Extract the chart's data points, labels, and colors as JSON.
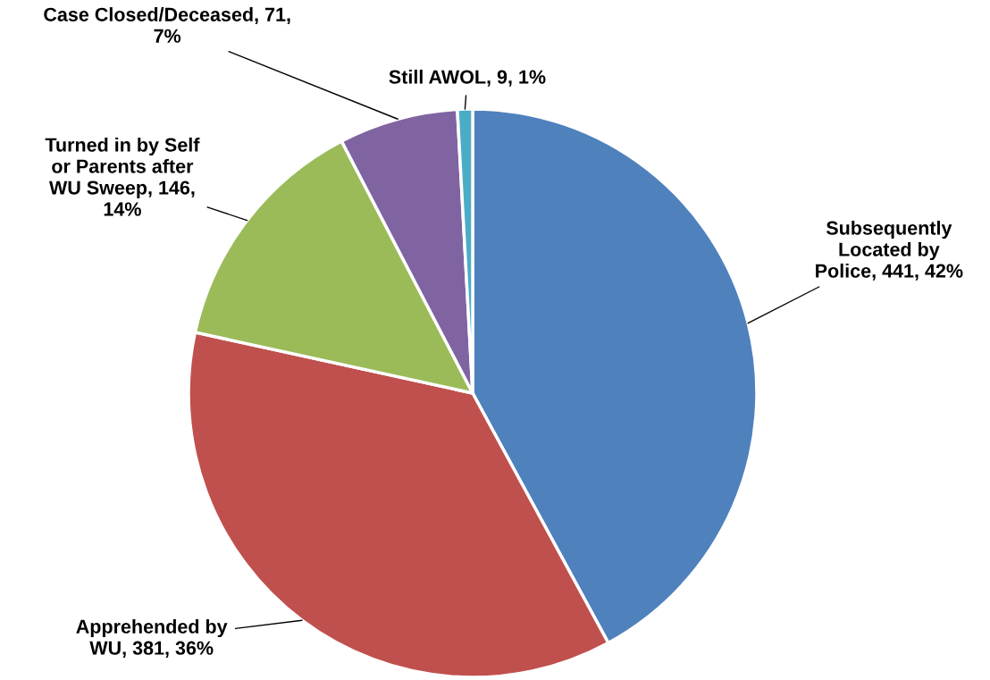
{
  "chart_data": {
    "type": "pie",
    "categories": [
      "Subsequently\nLocated by\nPolice",
      "Apprehended by\nWU",
      "Turned in by Self\nor Parents after\nWU Sweep",
      "Case Closed/Deceased",
      "Still AWOL"
    ],
    "values": [
      441,
      381,
      146,
      71,
      9
    ],
    "value_labels": [
      "441, 42%",
      "381, 36%",
      "146,\n14%",
      "71,\n7%",
      "9, 1%"
    ],
    "colors": [
      "#4f81bd",
      "#c0504d",
      "#9bbb59",
      "#8064a2",
      "#4bacc6"
    ],
    "legend": false
  }
}
